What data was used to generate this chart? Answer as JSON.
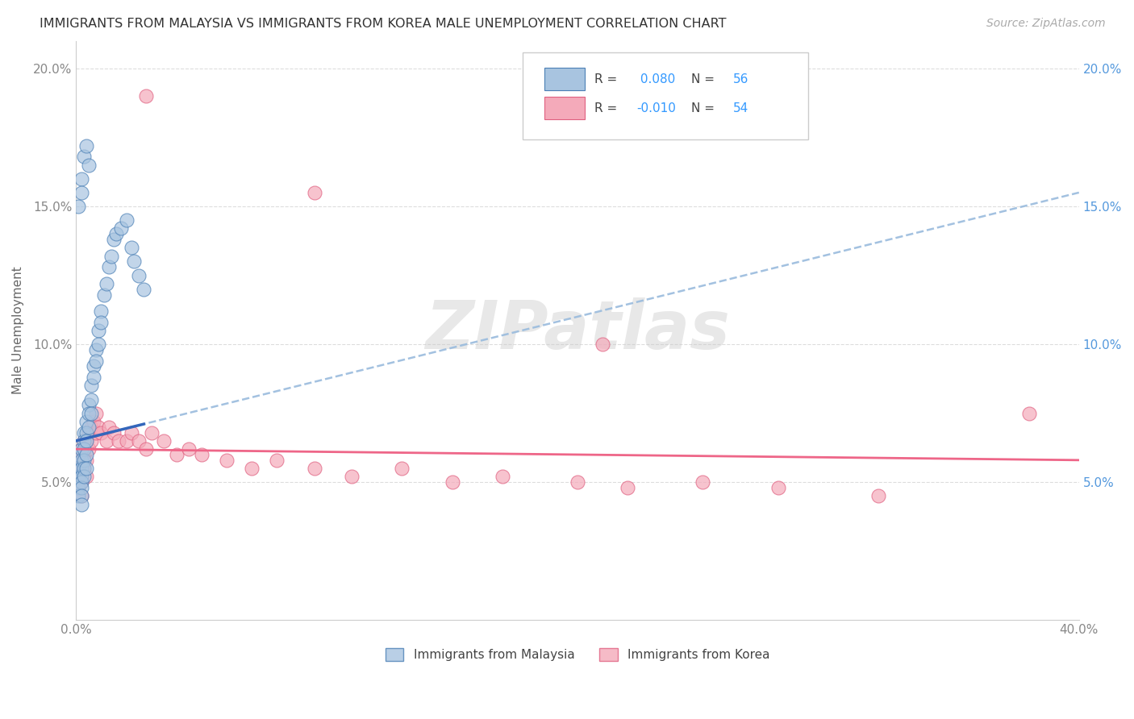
{
  "title": "IMMIGRANTS FROM MALAYSIA VS IMMIGRANTS FROM KOREA MALE UNEMPLOYMENT CORRELATION CHART",
  "source": "Source: ZipAtlas.com",
  "ylabel": "Male Unemployment",
  "xlim": [
    0.0,
    0.4
  ],
  "ylim": [
    0.0,
    0.21
  ],
  "yticks": [
    0.05,
    0.1,
    0.15,
    0.2
  ],
  "ytick_labels": [
    "5.0%",
    "10.0%",
    "15.0%",
    "20.0%"
  ],
  "legend_malaysia_R": " 0.080",
  "legend_malaysia_N": "56",
  "legend_korea_R": "-0.010",
  "legend_korea_N": "54",
  "blue_fill": "#A8C4E0",
  "blue_edge": "#4A7FB5",
  "pink_fill": "#F4AABA",
  "pink_edge": "#E06080",
  "blue_line_color": "#3366BB",
  "pink_line_color": "#EE6688",
  "dashed_line_color": "#99BBDD",
  "watermark": "ZIPatlas",
  "background_color": "#FFFFFF",
  "grid_color": "#DDDDDD",
  "malaysia_x": [
    0.001,
    0.001,
    0.001,
    0.001,
    0.001,
    0.002,
    0.002,
    0.002,
    0.002,
    0.002,
    0.002,
    0.002,
    0.002,
    0.003,
    0.003,
    0.003,
    0.003,
    0.003,
    0.003,
    0.004,
    0.004,
    0.004,
    0.004,
    0.004,
    0.005,
    0.005,
    0.005,
    0.006,
    0.006,
    0.006,
    0.007,
    0.007,
    0.008,
    0.008,
    0.009,
    0.009,
    0.01,
    0.01,
    0.011,
    0.012,
    0.013,
    0.014,
    0.015,
    0.016,
    0.018,
    0.02,
    0.022,
    0.023,
    0.025,
    0.027,
    0.001,
    0.002,
    0.002,
    0.003,
    0.004,
    0.005
  ],
  "malaysia_y": [
    0.06,
    0.055,
    0.052,
    0.048,
    0.045,
    0.062,
    0.058,
    0.055,
    0.052,
    0.05,
    0.048,
    0.045,
    0.042,
    0.068,
    0.065,
    0.062,
    0.058,
    0.055,
    0.052,
    0.072,
    0.068,
    0.065,
    0.06,
    0.055,
    0.078,
    0.075,
    0.07,
    0.085,
    0.08,
    0.075,
    0.092,
    0.088,
    0.098,
    0.094,
    0.105,
    0.1,
    0.112,
    0.108,
    0.118,
    0.122,
    0.128,
    0.132,
    0.138,
    0.14,
    0.142,
    0.145,
    0.135,
    0.13,
    0.125,
    0.12,
    0.15,
    0.16,
    0.155,
    0.168,
    0.172,
    0.165
  ],
  "korea_x": [
    0.001,
    0.001,
    0.001,
    0.001,
    0.002,
    0.002,
    0.002,
    0.002,
    0.002,
    0.003,
    0.003,
    0.003,
    0.004,
    0.004,
    0.004,
    0.005,
    0.005,
    0.006,
    0.006,
    0.007,
    0.008,
    0.008,
    0.009,
    0.01,
    0.012,
    0.013,
    0.015,
    0.017,
    0.02,
    0.022,
    0.025,
    0.028,
    0.03,
    0.035,
    0.04,
    0.045,
    0.05,
    0.06,
    0.07,
    0.08,
    0.095,
    0.11,
    0.13,
    0.15,
    0.17,
    0.2,
    0.22,
    0.25,
    0.28,
    0.32,
    0.028,
    0.095,
    0.38,
    0.21
  ],
  "korea_y": [
    0.058,
    0.055,
    0.052,
    0.048,
    0.062,
    0.06,
    0.055,
    0.05,
    0.045,
    0.065,
    0.06,
    0.055,
    0.065,
    0.058,
    0.052,
    0.068,
    0.062,
    0.07,
    0.065,
    0.072,
    0.075,
    0.068,
    0.07,
    0.068,
    0.065,
    0.07,
    0.068,
    0.065,
    0.065,
    0.068,
    0.065,
    0.062,
    0.068,
    0.065,
    0.06,
    0.062,
    0.06,
    0.058,
    0.055,
    0.058,
    0.055,
    0.052,
    0.055,
    0.05,
    0.052,
    0.05,
    0.048,
    0.05,
    0.048,
    0.045,
    0.19,
    0.155,
    0.075,
    0.1
  ]
}
